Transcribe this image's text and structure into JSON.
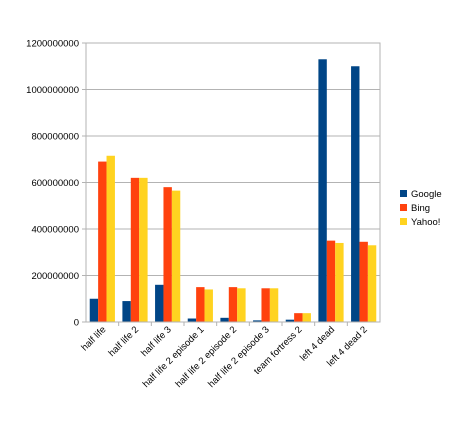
{
  "chart_data": {
    "type": "bar",
    "title": "",
    "xlabel": "",
    "ylabel": "",
    "ylim": [
      0,
      1200000000
    ],
    "yticks": [
      "0",
      "200000000",
      "400000000",
      "600000000",
      "800000000",
      "1000000000",
      "1200000000"
    ],
    "ytick_values": [
      0,
      200000000,
      400000000,
      600000000,
      800000000,
      1000000000,
      1200000000
    ],
    "grid": true,
    "legend_position": "right",
    "categories": [
      "half life",
      "half life 2",
      "half life 3",
      "half life 2 episode 1",
      "half life 2 episode 2",
      "half life 2 episode 3",
      "team fortress 2",
      "left 4 dead",
      "left 4 dead 2"
    ],
    "series": [
      {
        "name": "Google",
        "color": "#004586",
        "values": [
          100000000,
          90000000,
          160000000,
          15000000,
          18000000,
          7000000,
          10000000,
          1130000000,
          1100000000
        ]
      },
      {
        "name": "Bing",
        "color": "#ff420e",
        "values": [
          690000000,
          620000000,
          580000000,
          150000000,
          150000000,
          145000000,
          38000000,
          350000000,
          345000000
        ]
      },
      {
        "name": "Yahoo!",
        "color": "#ffd320",
        "values": [
          715000000,
          620000000,
          565000000,
          140000000,
          145000000,
          145000000,
          38000000,
          340000000,
          330000000
        ]
      }
    ]
  }
}
